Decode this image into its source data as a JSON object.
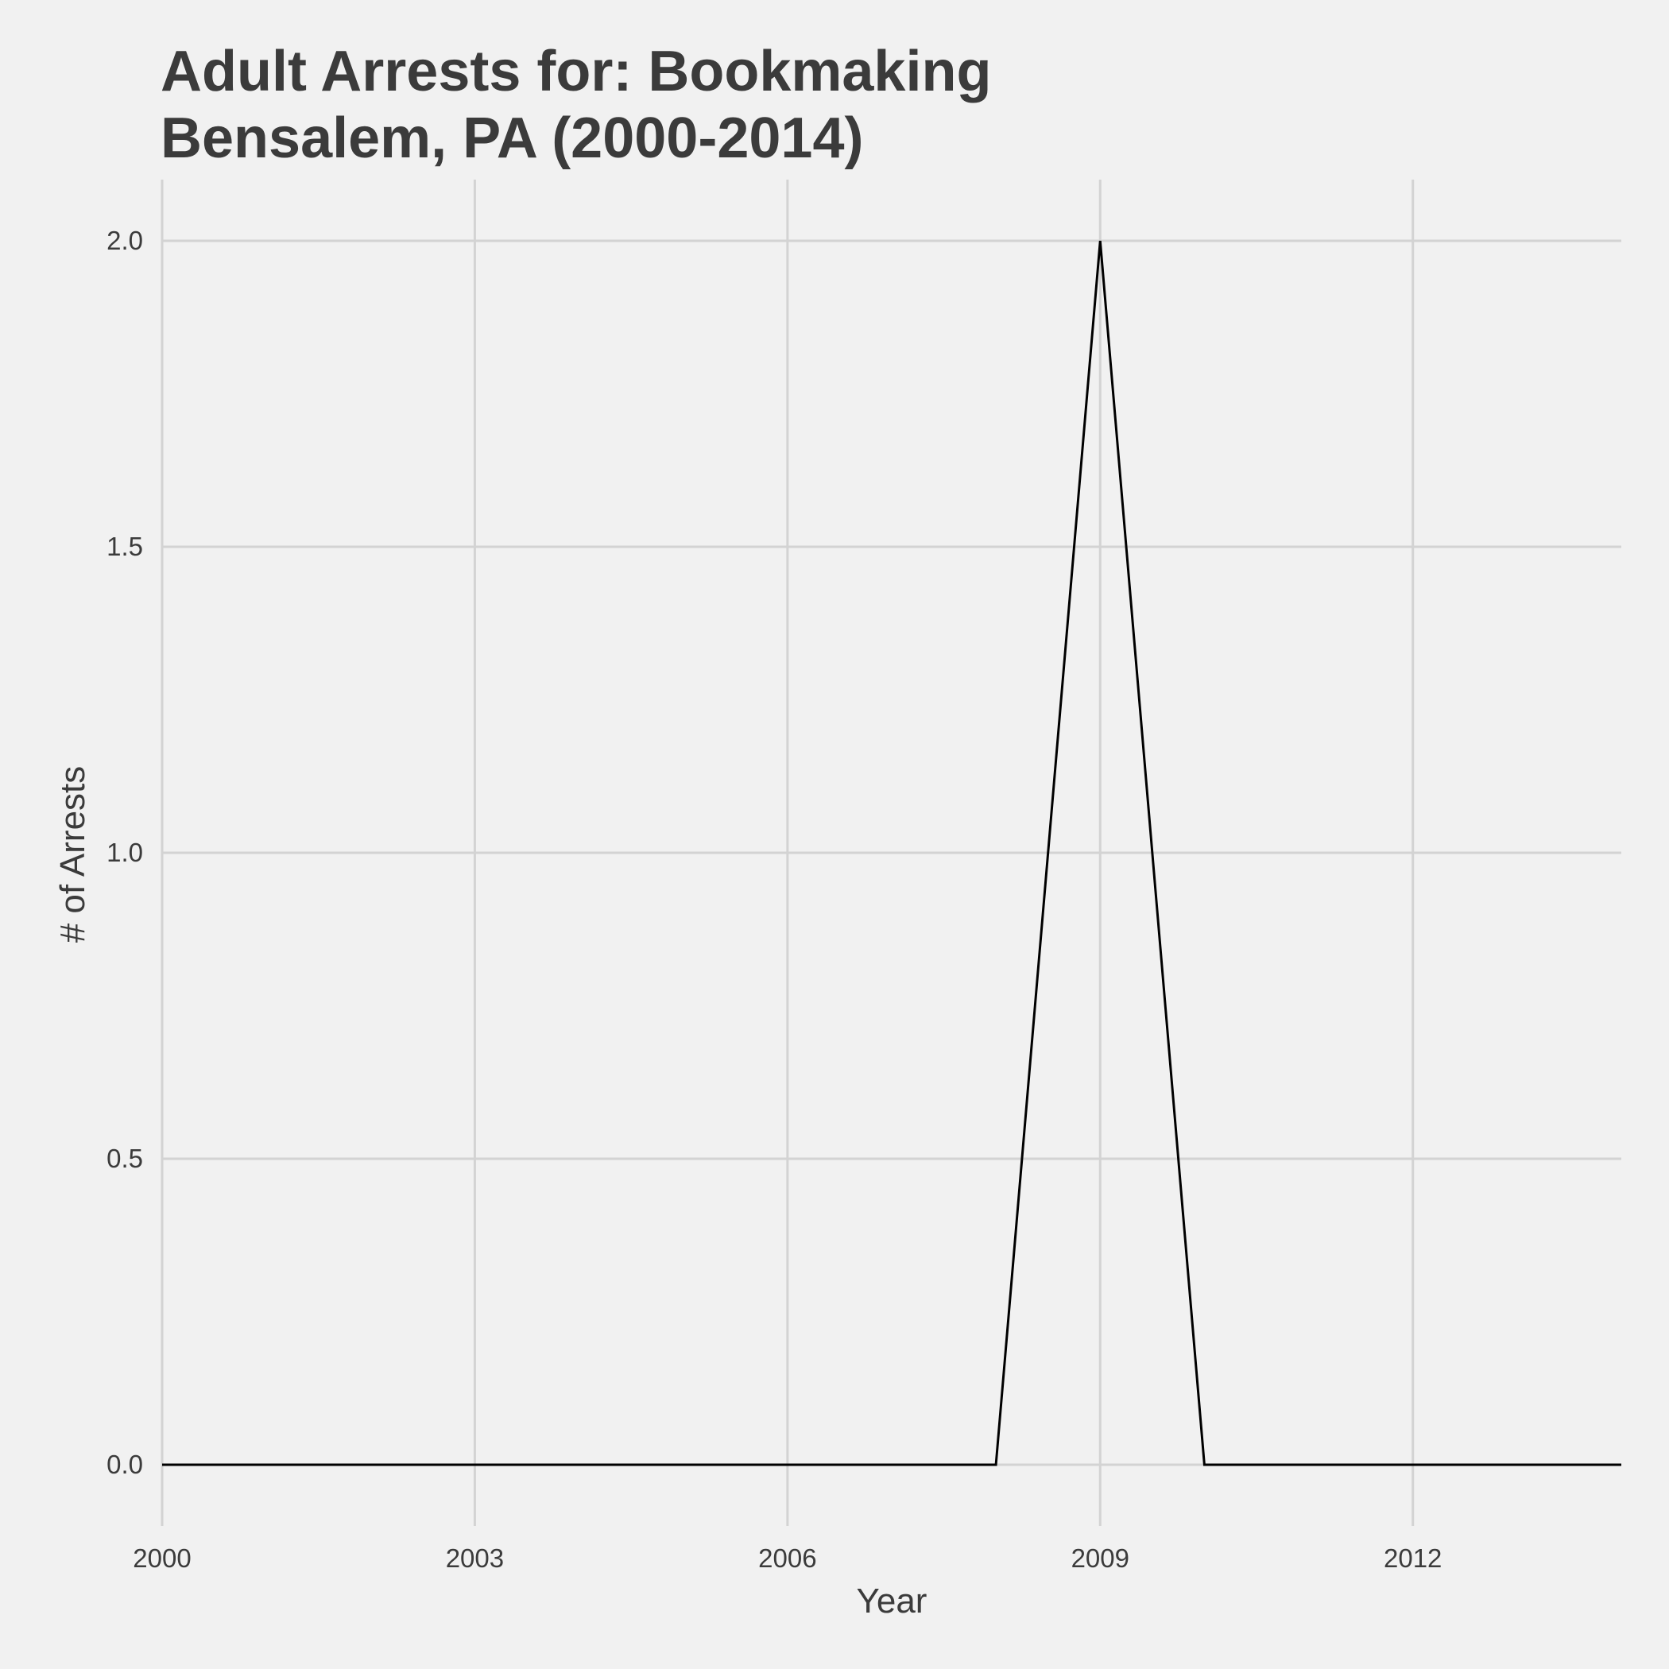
{
  "chart_data": {
    "type": "line",
    "title": [
      "Adult Arrests for: Bookmaking",
      "Bensalem, PA (2000-2014)"
    ],
    "xlabel": "Year",
    "ylabel": "# of Arrests",
    "xlim": [
      2000,
      2014
    ],
    "ylim": [
      -0.1,
      2.1
    ],
    "x_ticks": [
      2000,
      2003,
      2006,
      2009,
      2012
    ],
    "y_ticks": [
      0.0,
      0.5,
      1.0,
      1.5,
      2.0
    ],
    "y_tick_labels": [
      "0.0",
      "0.5",
      "1.0",
      "1.5",
      "2.0"
    ],
    "grid": true,
    "legend": "none",
    "x": [
      2000,
      2001,
      2002,
      2003,
      2004,
      2005,
      2006,
      2007,
      2008,
      2009,
      2010,
      2011,
      2012,
      2013,
      2014
    ],
    "series": [
      {
        "values": [
          0,
          0,
          0,
          0,
          0,
          0,
          0,
          0,
          0,
          2,
          0,
          0,
          0,
          0,
          0
        ],
        "color": "#000000"
      }
    ],
    "colors": {
      "background": "#f1f1f1",
      "grid": "#d3d3d3",
      "text": "#3b3b3b",
      "line": "#000000"
    }
  }
}
